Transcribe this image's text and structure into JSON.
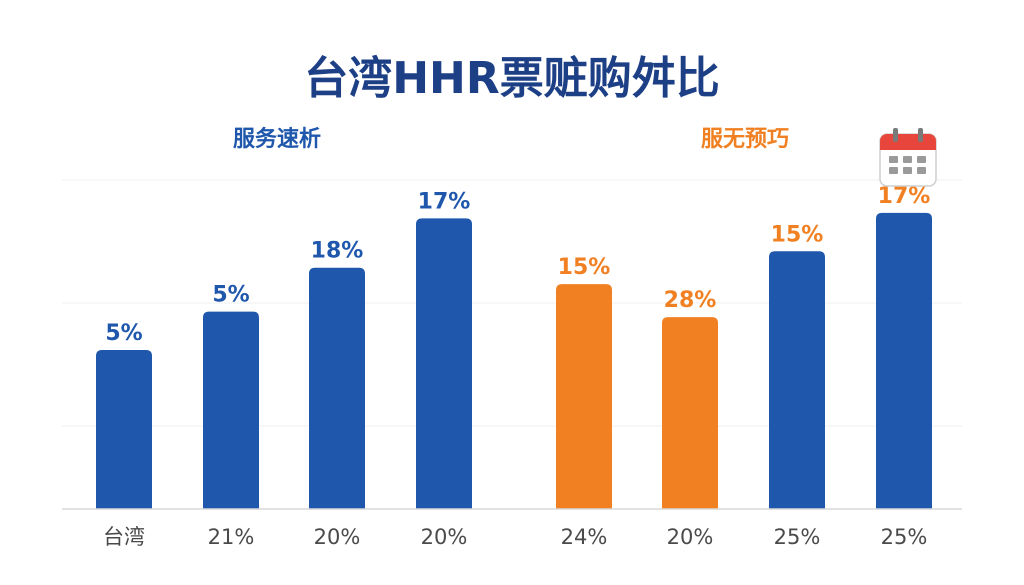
{
  "chart_data": {
    "type": "bar",
    "title": "台湾HHR票赃购舛比",
    "groups": [
      {
        "name": "服务速析",
        "color": "#1f57ac",
        "categories": [
          "台湾",
          "21%",
          "20%",
          "20%"
        ],
        "values": [
          29,
          36,
          44,
          53
        ],
        "data_labels": [
          "5%",
          "5%",
          "18%",
          "17%"
        ]
      },
      {
        "name": "服无预巧",
        "color": "#f08022",
        "categories": [
          "24%",
          "20%",
          "25%",
          "25%"
        ],
        "values": [
          41,
          35,
          47,
          54
        ],
        "data_labels": [
          "15%",
          "28%",
          "15%",
          "17%"
        ],
        "bar_colors": [
          "#f08022",
          "#f08022",
          "#1f57ac",
          "#1f57ac"
        ],
        "label_colors": [
          "#f08022",
          "#f08022",
          "#f08022",
          "#f08022"
        ]
      }
    ],
    "ylim": [
      0,
      60
    ],
    "grid": true,
    "legend": "none",
    "colors": {
      "blue": "#1f57ac",
      "orange": "#f08022",
      "title": "#1c3f86",
      "axis_text": "#4a4a4a"
    },
    "icons": [
      "calendar-icon"
    ]
  }
}
